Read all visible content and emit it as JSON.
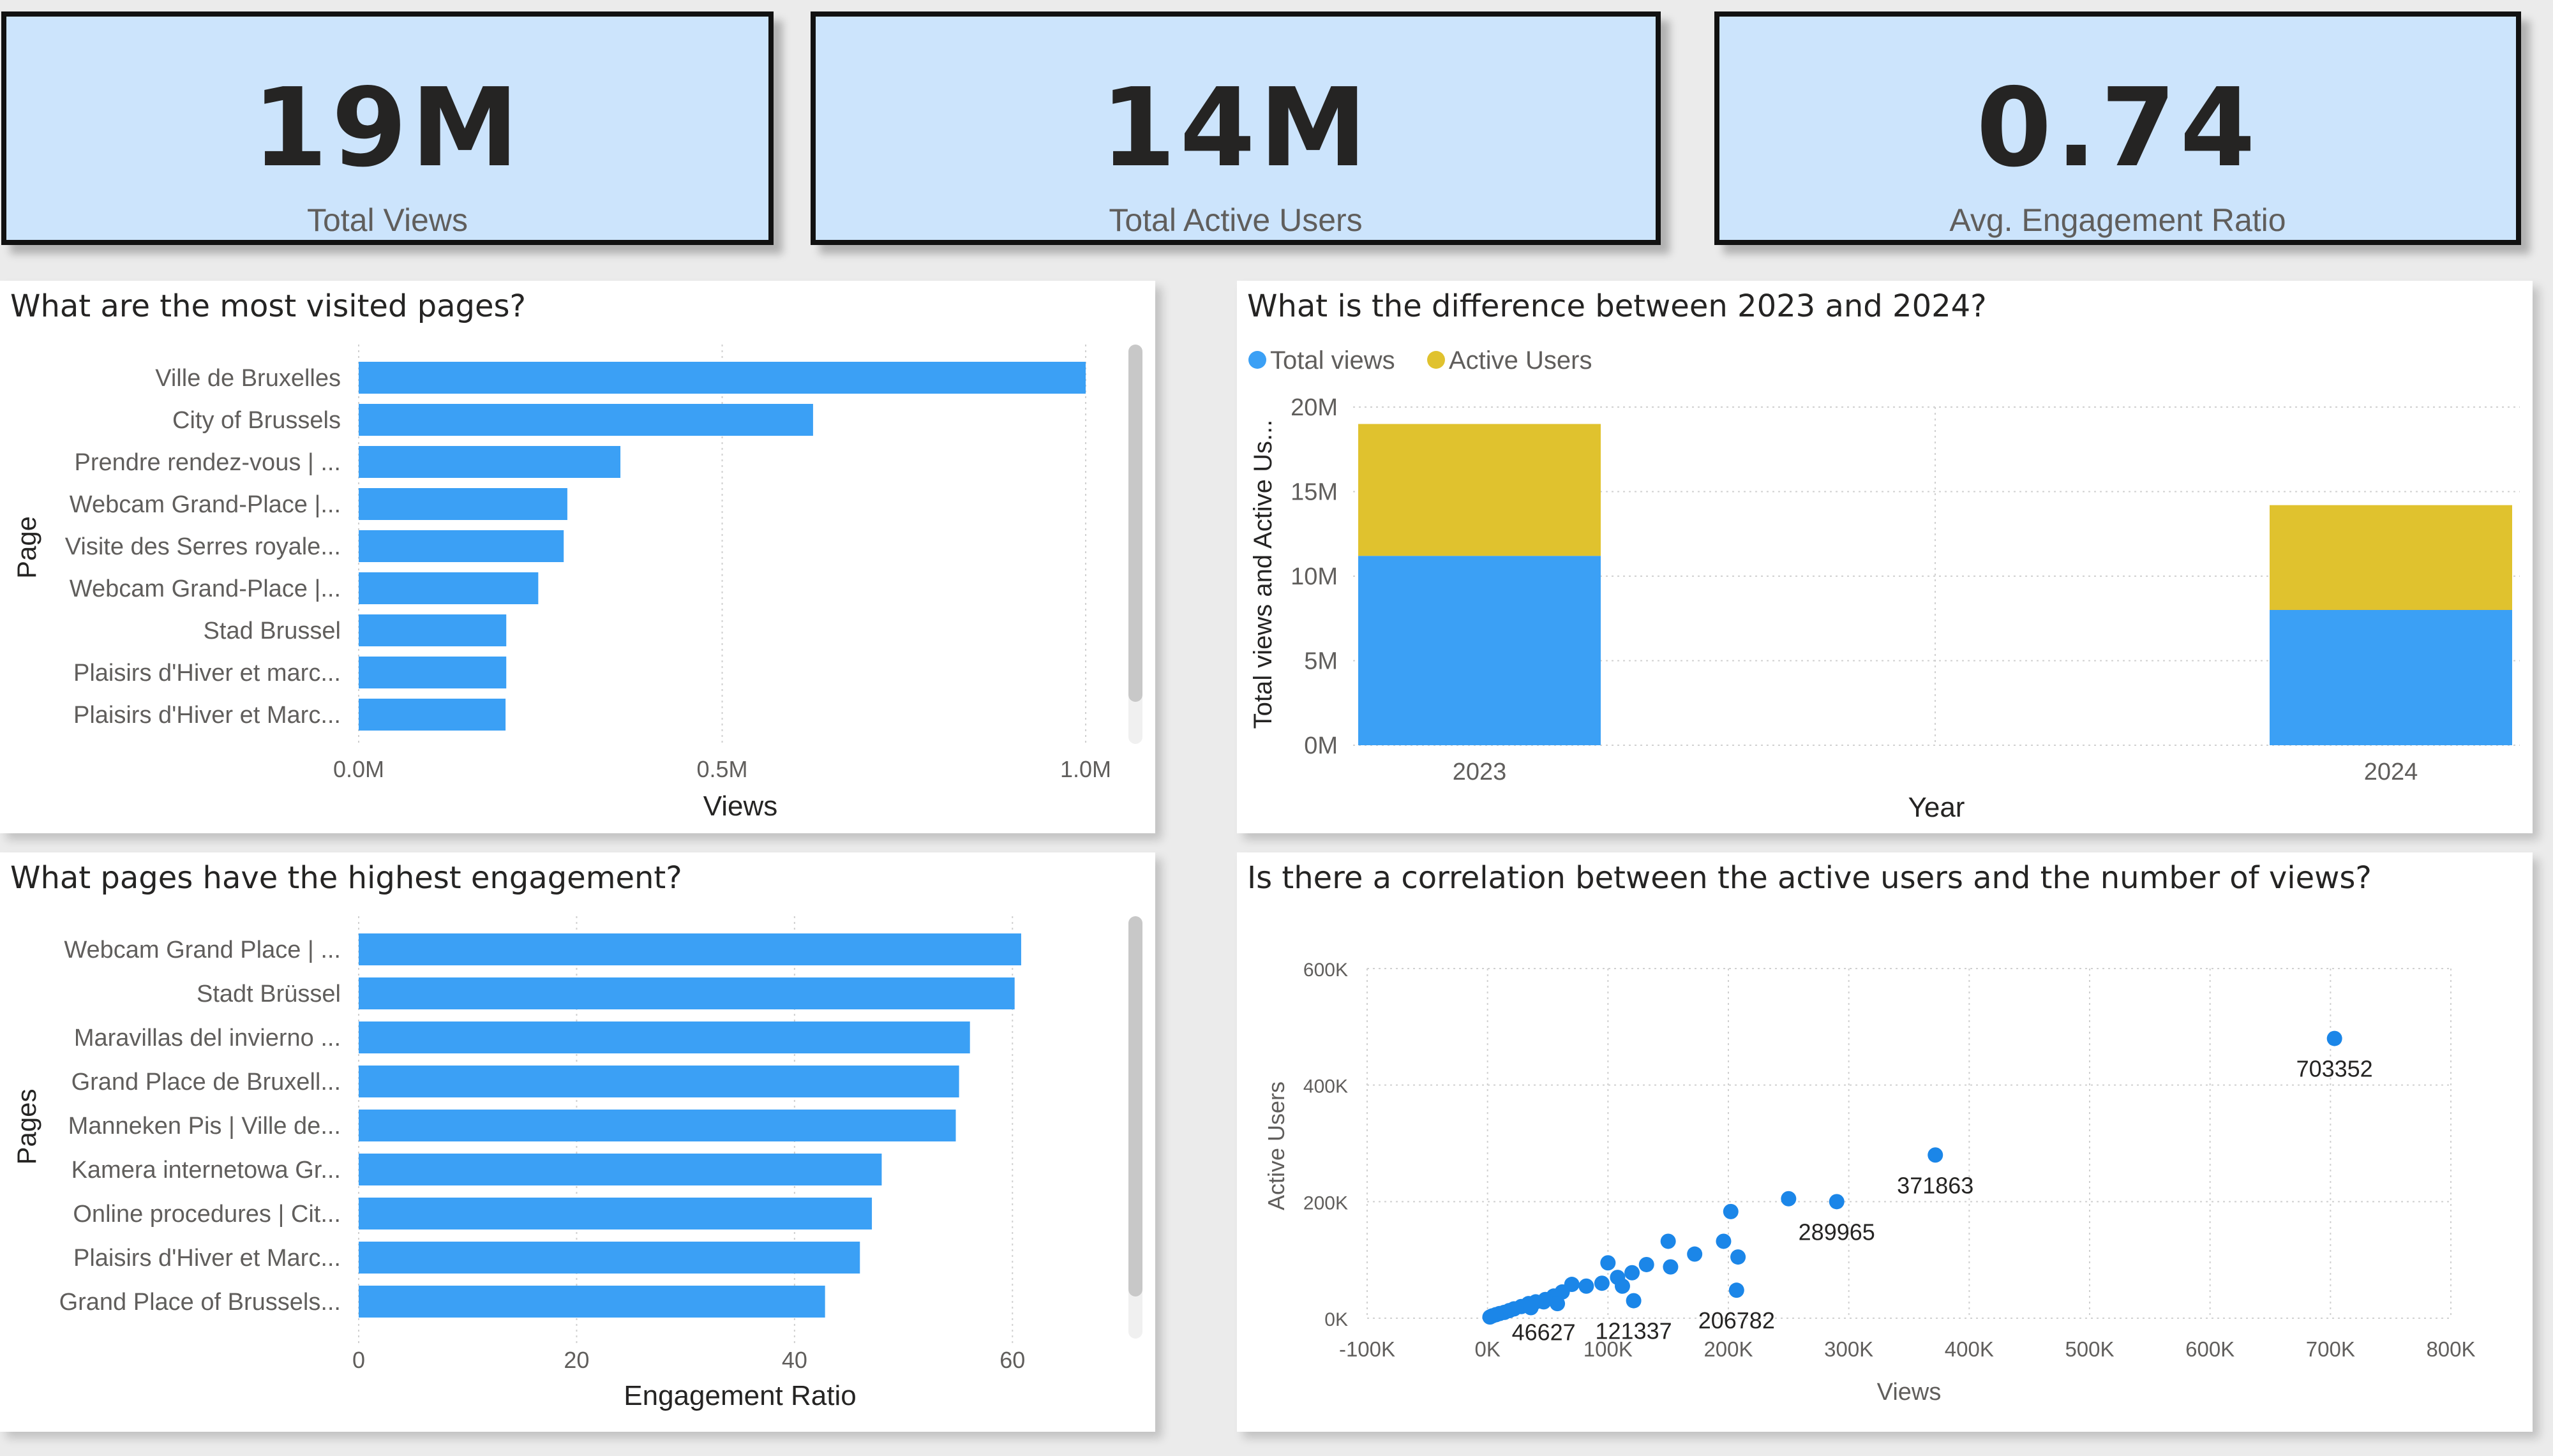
{
  "kpis": [
    {
      "value": "19M",
      "label": "Total Views"
    },
    {
      "value": "14M",
      "label": "Total Active Users"
    },
    {
      "value": "0.74",
      "label": "Avg. Engagement Ratio"
    }
  ],
  "colors": {
    "blue": "#3ba0f5",
    "gold": "#e0c22e",
    "scatter": "#1b86e8",
    "kpi_bg": "#cce4fc"
  },
  "chart_data": [
    {
      "id": "most_visited",
      "type": "bar",
      "orientation": "horizontal",
      "title": "What are the most visited pages?",
      "ylabel": "Page",
      "xlabel": "Views",
      "categories": [
        "Ville de Bruxelles",
        "City of Brussels",
        "Prendre rendez-vous | ...",
        "Webcam Grand-Place |...",
        "Visite des Serres royale...",
        "Webcam Grand-Place |...",
        "Stad Brussel",
        "Plaisirs d'Hiver et marc...",
        "Plaisirs d'Hiver et Marc..."
      ],
      "values": [
        1000000,
        625000,
        360000,
        287000,
        282000,
        247000,
        203000,
        203000,
        202000
      ],
      "xlim": [
        0,
        1050000
      ],
      "xticks": [
        {
          "v": 0,
          "label": "0.0M"
        },
        {
          "v": 500000,
          "label": "0.5M"
        },
        {
          "v": 1000000,
          "label": "1.0M"
        }
      ],
      "grid": true
    },
    {
      "id": "year_compare",
      "type": "bar",
      "stacked": true,
      "title": "What is the difference between 2023 and 2024?",
      "xlabel": "Year",
      "ylabel": "Total views and Active Us...",
      "categories": [
        "2023",
        "2024"
      ],
      "series": [
        {
          "name": "Total views",
          "values": [
            11200000,
            8000000
          ]
        },
        {
          "name": "Active Users",
          "values": [
            7800000,
            6200000
          ]
        }
      ],
      "ylim": [
        0,
        20000000
      ],
      "yticks": [
        {
          "v": 0,
          "label": "0M"
        },
        {
          "v": 5000000,
          "label": "5M"
        },
        {
          "v": 10000000,
          "label": "10M"
        },
        {
          "v": 15000000,
          "label": "15M"
        },
        {
          "v": 20000000,
          "label": "20M"
        }
      ],
      "legend": "top-left",
      "grid": true
    },
    {
      "id": "engagement",
      "type": "bar",
      "orientation": "horizontal",
      "title": "What pages have the highest engagement?",
      "ylabel": "Pages",
      "xlabel": "Engagement Ratio",
      "categories": [
        "Webcam Grand Place | ...",
        "Stadt Brüssel",
        "Maravillas del invierno ...",
        "Grand Place de Bruxell...",
        "Manneken Pis | Ville de...",
        "Kamera internetowa Gr...",
        "Online procedures | Cit...",
        "Plaisirs d'Hiver et Marc...",
        "Grand Place of Brussels..."
      ],
      "values": [
        60.8,
        60.2,
        56.1,
        55.1,
        54.8,
        48.0,
        47.1,
        46.0,
        42.8
      ],
      "xlim": [
        0,
        70
      ],
      "xticks": [
        {
          "v": 0,
          "label": "0"
        },
        {
          "v": 20,
          "label": "20"
        },
        {
          "v": 40,
          "label": "40"
        },
        {
          "v": 60,
          "label": "60"
        }
      ],
      "grid": true
    },
    {
      "id": "correlation",
      "type": "scatter",
      "title": "Is there a correlation between the active users and the number of views?",
      "xlabel": "Views",
      "ylabel": "Active Users",
      "xlim": [
        -100000,
        800000
      ],
      "ylim": [
        0,
        600000
      ],
      "xticks": [
        {
          "v": -100000,
          "label": "-100K"
        },
        {
          "v": 0,
          "label": "0K"
        },
        {
          "v": 100000,
          "label": "100K"
        },
        {
          "v": 200000,
          "label": "200K"
        },
        {
          "v": 300000,
          "label": "300K"
        },
        {
          "v": 400000,
          "label": "400K"
        },
        {
          "v": 500000,
          "label": "500K"
        },
        {
          "v": 600000,
          "label": "600K"
        },
        {
          "v": 700000,
          "label": "700K"
        },
        {
          "v": 800000,
          "label": "800K"
        }
      ],
      "yticks": [
        {
          "v": 0,
          "label": "0K"
        },
        {
          "v": 200000,
          "label": "200K"
        },
        {
          "v": 400000,
          "label": "400K"
        },
        {
          "v": 600000,
          "label": "600K"
        }
      ],
      "points": [
        {
          "x": 703352,
          "y": 480000,
          "label": "703352"
        },
        {
          "x": 371863,
          "y": 280000,
          "label": "371863"
        },
        {
          "x": 289965,
          "y": 200000,
          "label": "289965"
        },
        {
          "x": 206782,
          "y": 48000,
          "label": "206782"
        },
        {
          "x": 121337,
          "y": 30000,
          "label": "121337"
        },
        {
          "x": 46627,
          "y": 28000,
          "label": "46627"
        },
        {
          "x": 250000,
          "y": 205000
        },
        {
          "x": 202000,
          "y": 183000
        },
        {
          "x": 196000,
          "y": 132000
        },
        {
          "x": 208000,
          "y": 105000
        },
        {
          "x": 172000,
          "y": 110000
        },
        {
          "x": 150000,
          "y": 132000
        },
        {
          "x": 152000,
          "y": 88000
        },
        {
          "x": 132000,
          "y": 92000
        },
        {
          "x": 120000,
          "y": 78000
        },
        {
          "x": 108000,
          "y": 70000
        },
        {
          "x": 100000,
          "y": 95000
        },
        {
          "x": 95000,
          "y": 60000
        },
        {
          "x": 82000,
          "y": 55000
        },
        {
          "x": 70000,
          "y": 58000
        },
        {
          "x": 62000,
          "y": 45000
        },
        {
          "x": 55000,
          "y": 38000
        },
        {
          "x": 48000,
          "y": 32000
        },
        {
          "x": 40000,
          "y": 28000
        },
        {
          "x": 34000,
          "y": 25000
        },
        {
          "x": 28000,
          "y": 20000
        },
        {
          "x": 22000,
          "y": 16000
        },
        {
          "x": 18000,
          "y": 13000
        },
        {
          "x": 14000,
          "y": 10000
        },
        {
          "x": 10000,
          "y": 8000
        },
        {
          "x": 7000,
          "y": 6000
        },
        {
          "x": 4000,
          "y": 4000
        },
        {
          "x": 2000,
          "y": 2000
        },
        {
          "x": 36000,
          "y": 18000
        },
        {
          "x": 58000,
          "y": 25000
        },
        {
          "x": 112000,
          "y": 55000
        }
      ],
      "grid": true
    }
  ]
}
